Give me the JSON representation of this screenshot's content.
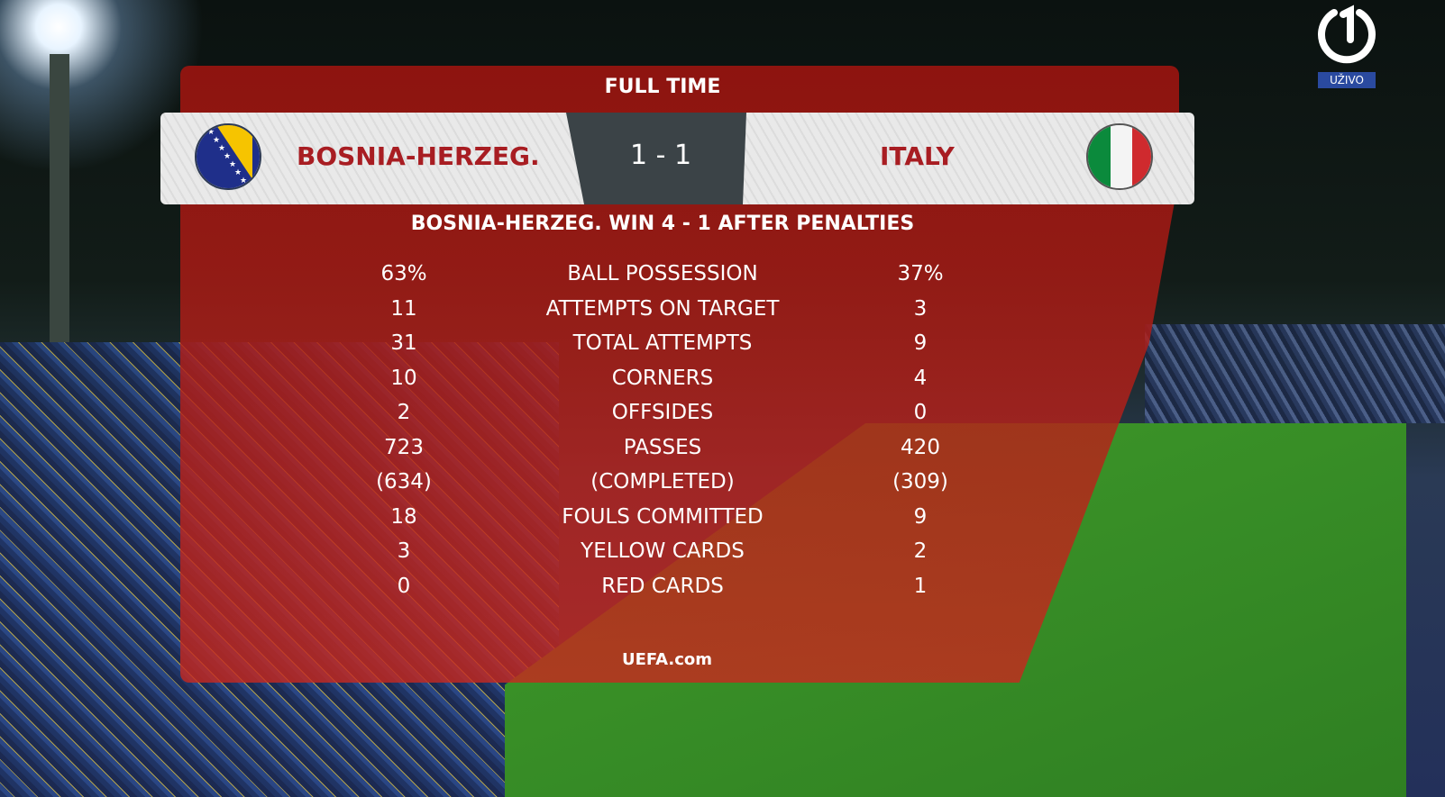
{
  "broadcaster": {
    "logo": "channel-1-logo",
    "live_label": "UŽIVO"
  },
  "header": {
    "status": "FULL TIME"
  },
  "match": {
    "home": {
      "name": "BOSNIA-HERZEG.",
      "flag": "bosnia-flag"
    },
    "away": {
      "name": "ITALY",
      "flag": "italy-flag"
    },
    "score": "1 - 1",
    "result_note": "BOSNIA-HERZEG. WIN 4 - 1 AFTER PENALTIES"
  },
  "stats": [
    {
      "label": "BALL POSSESSION",
      "home": "63%",
      "away": "37%"
    },
    {
      "label": "ATTEMPTS ON TARGET",
      "home": "11",
      "away": "3"
    },
    {
      "label": "TOTAL ATTEMPTS",
      "home": "31",
      "away": "9"
    },
    {
      "label": "CORNERS",
      "home": "10",
      "away": "4"
    },
    {
      "label": "OFFSIDES",
      "home": "2",
      "away": "0"
    },
    {
      "label": "PASSES",
      "home": "723",
      "away": "420"
    },
    {
      "label": "(COMPLETED)",
      "home": "(634)",
      "away": "(309)"
    },
    {
      "label": "FOULS COMMITTED",
      "home": "18",
      "away": "9"
    },
    {
      "label": "YELLOW CARDS",
      "home": "3",
      "away": "2"
    },
    {
      "label": "RED CARDS",
      "home": "0",
      "away": "1"
    }
  ],
  "footer": {
    "source": "UEFA.com"
  },
  "colors": {
    "panel": "#b01c16",
    "team_text": "#a81d22",
    "score_box": "#3b4347"
  }
}
